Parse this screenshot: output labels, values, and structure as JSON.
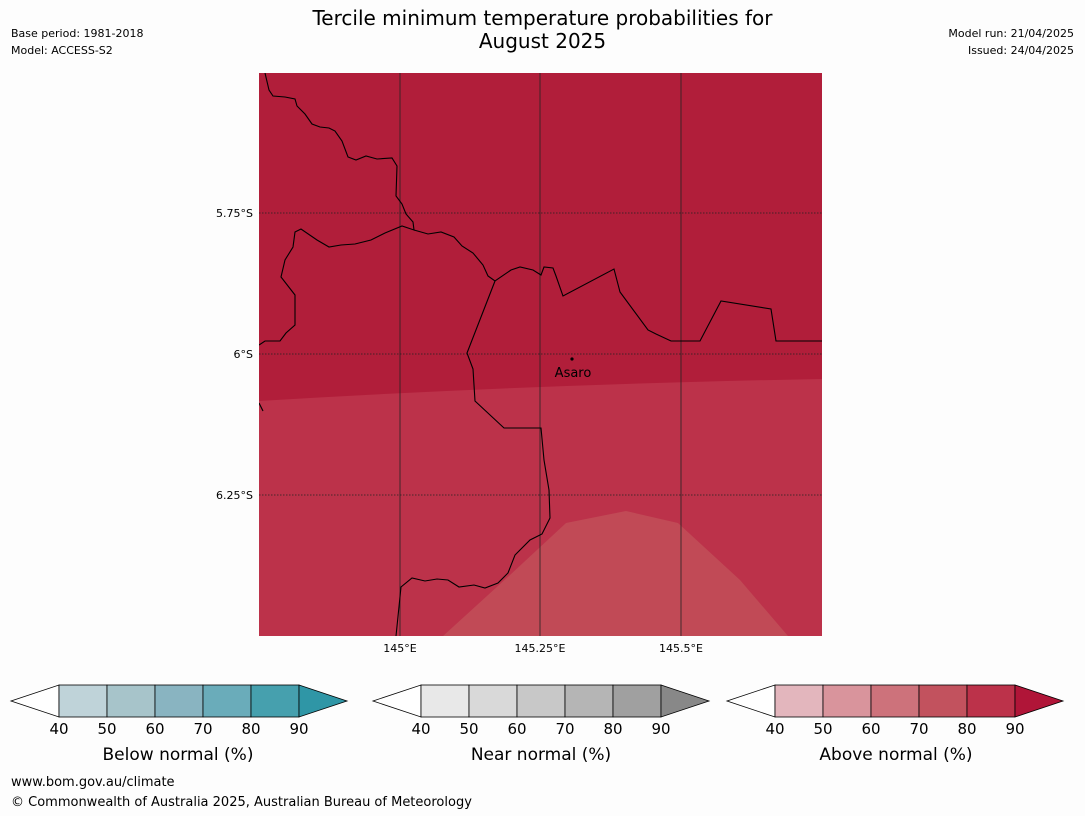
{
  "header": {
    "title_line1": "Tercile minimum temperature probabilities for",
    "title_line2": "August 2025",
    "base_period": "Base period: 1981-2018",
    "model": "Model: ACCESS-S2",
    "model_run": "Model run: 21/04/2025",
    "issued": "Issued: 24/04/2025"
  },
  "map": {
    "lat_labels": [
      "5.75°S",
      "6°S",
      "6.25°S"
    ],
    "lon_labels": [
      "145°E",
      "145.25°E",
      "145.5°E"
    ],
    "place": {
      "name": "Asaro",
      "lon": 145.38,
      "lat": -6.01
    },
    "probability_zones": [
      {
        "category": "Above normal",
        "range": "80-90",
        "color": "#b11e3a"
      },
      {
        "category": "Above normal",
        "range": "70-80",
        "color": "#bc324a"
      },
      {
        "category": "Above normal",
        "range": "60-70",
        "color": "#c14a56"
      }
    ]
  },
  "colorbars": [
    {
      "label": "Below normal (%)",
      "ticks": [
        "40",
        "50",
        "60",
        "70",
        "80",
        "90"
      ],
      "colors": [
        "#ffffff",
        "#bfd3d9",
        "#a7c4ca",
        "#89b4c1",
        "#6aacba",
        "#46a0ae",
        "#2f96a6"
      ]
    },
    {
      "label": "Near normal (%)",
      "ticks": [
        "40",
        "50",
        "60",
        "70",
        "80",
        "90"
      ],
      "colors": [
        "#ffffff",
        "#e8e8e8",
        "#d9d9d9",
        "#c8c8c8",
        "#b5b5b5",
        "#a0a0a0",
        "#888888"
      ]
    },
    {
      "label": "Above normal (%)",
      "ticks": [
        "40",
        "50",
        "60",
        "70",
        "80",
        "90"
      ],
      "colors": [
        "#ffffff",
        "#e3b6bd",
        "#d9949c",
        "#cd727b",
        "#c2525e",
        "#bc324a",
        "#b01538"
      ]
    }
  ],
  "footer": {
    "url": "www.bom.gov.au/climate",
    "copyright": "© Commonwealth of Australia 2025, Australian Bureau of Meteorology"
  }
}
